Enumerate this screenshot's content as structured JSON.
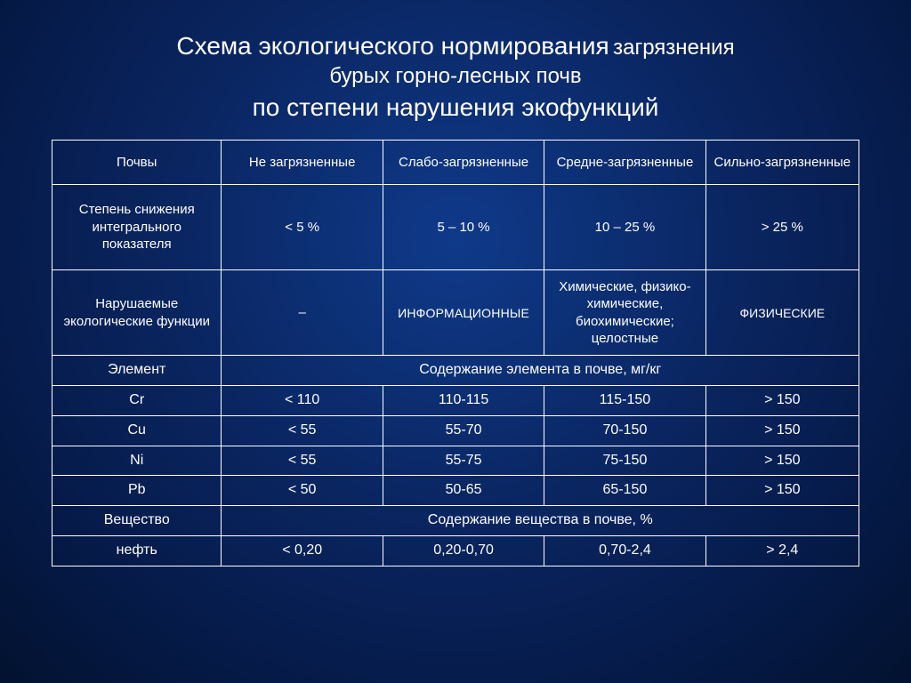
{
  "title": {
    "line1": "Схема экологического нормирования",
    "line1_sub": "загрязнения",
    "line2": "бурых горно-лесных почв",
    "line3": "по степени нарушения экофункций"
  },
  "table": {
    "header": {
      "col0": "Почвы",
      "col1": "Не загрязненные",
      "col2": "Слабо-загрязненные",
      "col3": "Средне-загрязненные",
      "col4": "Сильно-загрязненные"
    },
    "row_index": {
      "label": "Степень снижения интегрального показателя",
      "c1": "< 5 %",
      "c2": "5 – 10 %",
      "c3": "10 – 25 %",
      "c4": "> 25 %"
    },
    "row_functions": {
      "label": "Нарушаемые экологические функции",
      "c1": "–",
      "c2": "Информационные",
      "c3": "Химические, физико-химические, биохимические; целостные",
      "c4": "Физические"
    },
    "section_element": {
      "label": "Элемент",
      "span": "Содержание элемента в почве, мг/кг"
    },
    "elements": [
      {
        "name": "Cr",
        "c1": "< 110",
        "c2": "110-115",
        "c3": "115-150",
        "c4": "> 150"
      },
      {
        "name": "Cu",
        "c1": "< 55",
        "c2": "55-70",
        "c3": "70-150",
        "c4": "> 150"
      },
      {
        "name": "Ni",
        "c1": "< 55",
        "c2": "55-75",
        "c3": "75-150",
        "c4": "> 150"
      },
      {
        "name": "Pb",
        "c1": "< 50",
        "c2": "50-65",
        "c3": "65-150",
        "c4": "> 150"
      }
    ],
    "section_substance": {
      "label": "Вещество",
      "span": "Содержание вещества в почве, %"
    },
    "substances": [
      {
        "name": "нефть",
        "c1": "< 0,20",
        "c2": "0,20-0,70",
        "c3": "0,70-2,4",
        "c4": "> 2,4"
      }
    ]
  },
  "style": {
    "title_fontsize_main": 28,
    "title_fontsize_sub": 24,
    "cell_fontsize": 15,
    "narrow_cell_fontsize": 16,
    "text_color": "#ffffff",
    "border_color": "#ffffff",
    "bg_gradient": [
      "#0f3a8a",
      "#0a2560",
      "#051a48",
      "#02122f"
    ]
  }
}
